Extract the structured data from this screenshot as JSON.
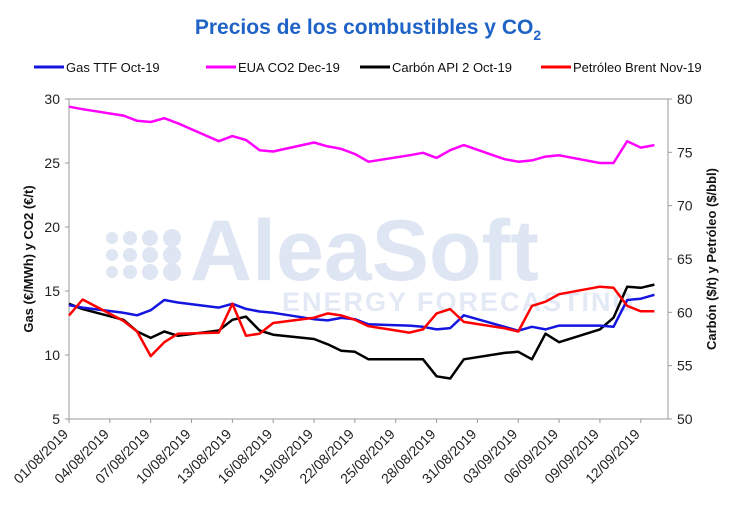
{
  "chart_data": {
    "type": "line",
    "title": "Precios de los combustibles y CO",
    "title_subscript": "2",
    "ylabel_left": "Gas (€/MWh) y CO2 (€/t)",
    "ylabel_right": "Carbón ($/t) y Petróleo ($/bbl)",
    "ylim_left": [
      5,
      30
    ],
    "ylim_right": [
      50,
      80
    ],
    "yticks_left": [
      5,
      10,
      15,
      20,
      25,
      30
    ],
    "yticks_right": [
      50,
      55,
      60,
      65,
      70,
      75,
      80
    ],
    "grid": "none",
    "legend_position": "top",
    "watermark": {
      "main": "AleaSoft",
      "sub": "ENERGY FORECASTING"
    },
    "xticks": [
      "01/08/2019",
      "04/08/2019",
      "07/08/2019",
      "10/08/2019",
      "13/08/2019",
      "16/08/2019",
      "19/08/2019",
      "22/08/2019",
      "25/08/2019",
      "28/08/2019",
      "31/08/2019",
      "03/09/2019",
      "06/09/2019",
      "09/09/2019",
      "12/09/2019"
    ],
    "x": [
      "01/08/2019",
      "02/08/2019",
      "05/08/2019",
      "06/08/2019",
      "07/08/2019",
      "08/08/2019",
      "09/08/2019",
      "12/08/2019",
      "13/08/2019",
      "14/08/2019",
      "15/08/2019",
      "16/08/2019",
      "19/08/2019",
      "20/08/2019",
      "21/08/2019",
      "22/08/2019",
      "23/08/2019",
      "26/08/2019",
      "27/08/2019",
      "28/08/2019",
      "29/08/2019",
      "30/08/2019",
      "02/09/2019",
      "03/09/2019",
      "04/09/2019",
      "05/09/2019",
      "06/09/2019",
      "09/09/2019",
      "10/09/2019",
      "11/09/2019",
      "12/09/2019",
      "13/09/2019"
    ],
    "series": [
      {
        "name": "Gas TTF Oct-19",
        "axis": "left",
        "color": "#1515e0",
        "values": [
          13.9,
          13.7,
          13.3,
          13.1,
          13.5,
          14.3,
          14.1,
          13.7,
          14.0,
          13.6,
          13.4,
          13.3,
          12.8,
          12.7,
          12.9,
          12.8,
          12.4,
          12.3,
          12.2,
          12.0,
          12.1,
          13.1,
          12.2,
          11.9,
          12.2,
          12.0,
          12.3,
          12.3,
          12.2,
          14.3,
          14.4,
          14.7
        ]
      },
      {
        "name": "EUA CO2 Dec-19",
        "axis": "left",
        "color": "#ff00ff",
        "values": [
          29.4,
          29.2,
          28.7,
          28.3,
          28.2,
          28.5,
          28.1,
          26.7,
          27.1,
          26.8,
          26.0,
          25.9,
          26.6,
          26.3,
          26.1,
          25.7,
          25.1,
          25.6,
          25.8,
          25.4,
          26.0,
          26.4,
          25.3,
          25.1,
          25.2,
          25.5,
          25.6,
          25.0,
          25.0,
          26.7,
          26.2,
          26.4
        ]
      },
      {
        "name": "Carbón API 2 Oct-19",
        "axis": "right",
        "color": "#000000",
        "values": [
          60.8,
          60.3,
          59.3,
          58.2,
          57.6,
          58.2,
          57.8,
          58.3,
          59.3,
          59.6,
          58.3,
          57.9,
          57.5,
          57.0,
          56.4,
          56.3,
          55.6,
          55.6,
          55.6,
          54.0,
          53.8,
          55.6,
          56.2,
          56.3,
          55.6,
          58.0,
          57.2,
          58.4,
          59.5,
          62.4,
          62.3,
          62.6
        ]
      },
      {
        "name": "Petróleo Brent Nov-19",
        "axis": "right",
        "color": "#ff0000",
        "values": [
          59.7,
          61.2,
          59.2,
          58.2,
          55.9,
          57.2,
          58.0,
          58.1,
          60.8,
          57.8,
          58.0,
          59.0,
          59.5,
          59.9,
          59.7,
          59.3,
          58.7,
          58.1,
          58.4,
          59.9,
          60.3,
          59.1,
          58.5,
          58.2,
          60.6,
          61.0,
          61.7,
          62.4,
          62.3,
          60.6,
          60.1,
          60.1
        ]
      }
    ]
  }
}
